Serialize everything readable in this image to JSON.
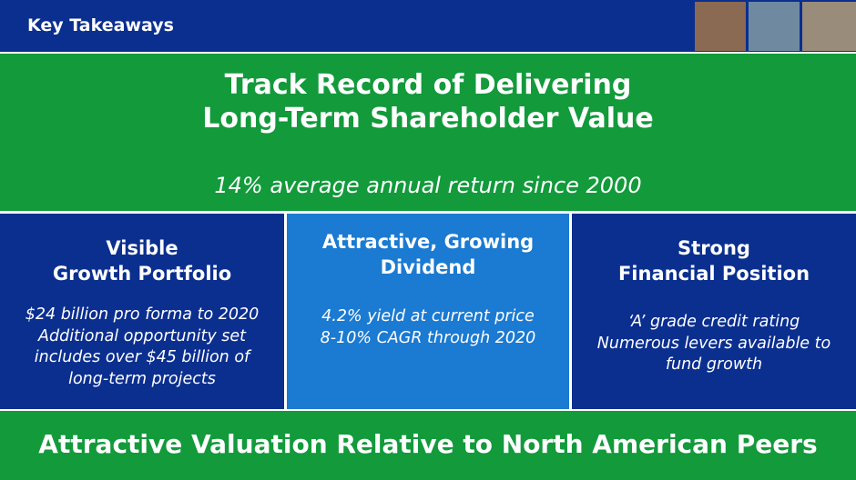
{
  "header": {
    "title": "Key Takeaways"
  },
  "banner": {
    "title": [
      "Track Record of Delivering",
      "Long-Term Shareholder Value"
    ],
    "subtitle": "14% average annual return since 2000"
  },
  "columns": [
    {
      "title": [
        "Visible",
        "Growth Portfolio"
      ],
      "lines": [
        "$24 billion pro forma to 2020",
        "Additional opportunity set",
        "includes over $45 billion of",
        "long-term projects"
      ]
    },
    {
      "title": [
        "Attractive, Growing",
        "Dividend"
      ],
      "lines": [
        "4.2% yield at current price",
        "8-10% CAGR through 2020"
      ]
    },
    {
      "title": [
        "Strong",
        "Financial Position"
      ],
      "lines": [
        "‘A’ grade credit rating",
        "Numerous levers available to",
        "fund growth"
      ]
    }
  ],
  "footer": {
    "text": "Attractive Valuation Relative to North American Peers"
  }
}
